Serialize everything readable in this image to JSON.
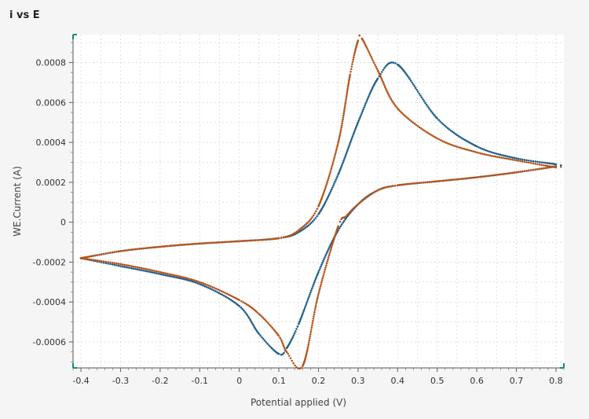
{
  "chart_data": {
    "type": "scatter",
    "title": "i vs E",
    "xlabel": "Potential applied (V)",
    "ylabel": "WE.Current (A)",
    "xlim": [
      -0.42,
      0.82
    ],
    "ylim": [
      -0.00073,
      0.00094
    ],
    "x_ticks": [
      -0.4,
      -0.3,
      -0.2,
      -0.1,
      0,
      0.1,
      0.2,
      0.3,
      0.4,
      0.5,
      0.6,
      0.7,
      0.8
    ],
    "x_tick_labels": [
      "-0.4",
      "-0.3",
      "-0.2",
      "-0.1",
      "0",
      "0.1",
      "0.2",
      "0.3",
      "0.4",
      "0.5",
      "0.6",
      "0.7",
      "0.8"
    ],
    "y_ticks": [
      -0.0006,
      -0.0004,
      -0.0002,
      0,
      0.0002,
      0.0004,
      0.0006,
      0.0008
    ],
    "y_tick_labels": [
      "-0.0006",
      "-0.0004",
      "-0.0002",
      "0",
      "0.0002",
      "0.0004",
      "0.0006",
      "0.0008"
    ],
    "grid": true,
    "legend": "none",
    "series": [
      {
        "color": "#1f5f8b",
        "x": [
          -0.4,
          -0.3,
          -0.2,
          -0.1,
          0.0,
          0.1,
          0.15,
          0.2,
          0.25,
          0.3,
          0.35,
          0.4,
          0.5,
          0.6,
          0.7,
          0.8,
          0.8,
          0.7,
          0.6,
          0.5,
          0.4,
          0.35,
          0.3,
          0.25,
          0.2,
          0.15,
          0.12,
          0.1,
          0.05,
          0.0,
          -0.1,
          -0.2,
          -0.3,
          -0.4
        ],
        "y": [
          -0.00018,
          -0.000145,
          -0.000123,
          -0.000107,
          -9.5e-05,
          -8e-05,
          -5e-05,
          4e-05,
          0.00024,
          0.0005,
          0.00072,
          0.00079,
          0.00052,
          0.00038,
          0.00032,
          0.00029,
          0.00028,
          0.00025,
          0.000225,
          0.000205,
          0.000185,
          0.00016,
          9e-05,
          -4e-05,
          -0.00025,
          -0.00051,
          -0.00063,
          -0.00066,
          -0.00056,
          -0.00042,
          -0.00031,
          -0.00026,
          -0.00022,
          -0.00018
        ]
      },
      {
        "color": "#b5541c",
        "x": [
          -0.4,
          -0.3,
          -0.2,
          -0.1,
          0.0,
          0.1,
          0.15,
          0.2,
          0.25,
          0.28,
          0.3,
          0.31,
          0.35,
          0.4,
          0.5,
          0.6,
          0.7,
          0.8,
          0.8,
          0.7,
          0.6,
          0.5,
          0.4,
          0.35,
          0.3,
          0.27,
          0.25,
          0.2,
          0.16,
          0.12,
          0.1,
          0.05,
          0.0,
          -0.1,
          -0.2,
          -0.3,
          -0.4
        ],
        "y": [
          -0.00018,
          -0.000145,
          -0.000123,
          -0.000107,
          -9.5e-05,
          -8e-05,
          -4e-05,
          8e-05,
          0.0004,
          0.00074,
          0.00091,
          0.00092,
          0.00076,
          0.00057,
          0.00042,
          0.00035,
          0.00031,
          0.000275,
          0.00028,
          0.00025,
          0.000225,
          0.000205,
          0.000185,
          0.00016,
          9e-05,
          3e-05,
          -2e-05,
          -0.00036,
          -0.00072,
          -0.00065,
          -0.00057,
          -0.00046,
          -0.00039,
          -0.0003,
          -0.00025,
          -0.00021,
          -0.00018
        ]
      }
    ]
  }
}
